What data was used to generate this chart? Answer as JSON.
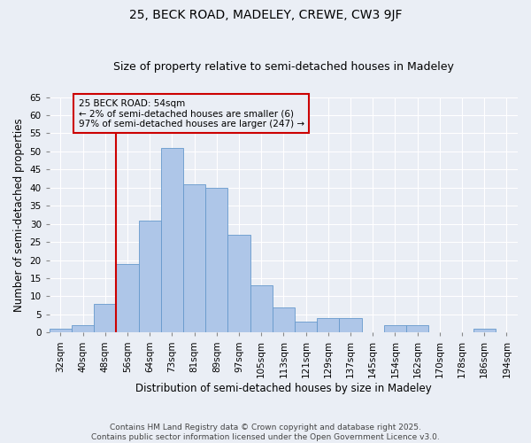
{
  "title1": "25, BECK ROAD, MADELEY, CREWE, CW3 9JF",
  "title2": "Size of property relative to semi-detached houses in Madeley",
  "xlabel": "Distribution of semi-detached houses by size in Madeley",
  "ylabel": "Number of semi-detached properties",
  "categories": [
    "32sqm",
    "40sqm",
    "48sqm",
    "56sqm",
    "64sqm",
    "73sqm",
    "81sqm",
    "89sqm",
    "97sqm",
    "105sqm",
    "113sqm",
    "121sqm",
    "129sqm",
    "137sqm",
    "145sqm",
    "154sqm",
    "162sqm",
    "170sqm",
    "178sqm",
    "186sqm",
    "194sqm"
  ],
  "values": [
    1,
    2,
    8,
    19,
    31,
    51,
    41,
    40,
    27,
    13,
    7,
    3,
    4,
    4,
    0,
    2,
    2,
    0,
    0,
    1,
    0
  ],
  "bar_color": "#aec6e8",
  "bar_edge_color": "#6699cc",
  "subject_line_color": "#cc0000",
  "annotation_text": "25 BECK ROAD: 54sqm\n← 2% of semi-detached houses are smaller (6)\n97% of semi-detached houses are larger (247) →",
  "annotation_box_edge_color": "#cc0000",
  "ylim": [
    0,
    65
  ],
  "yticks": [
    0,
    5,
    10,
    15,
    20,
    25,
    30,
    35,
    40,
    45,
    50,
    55,
    60,
    65
  ],
  "background_color": "#eaeef5",
  "footer_text": "Contains HM Land Registry data © Crown copyright and database right 2025.\nContains public sector information licensed under the Open Government Licence v3.0.",
  "title1_fontsize": 10,
  "title2_fontsize": 9,
  "xlabel_fontsize": 8.5,
  "ylabel_fontsize": 8.5,
  "tick_fontsize": 7.5,
  "annotation_fontsize": 7.5,
  "footer_fontsize": 6.5
}
